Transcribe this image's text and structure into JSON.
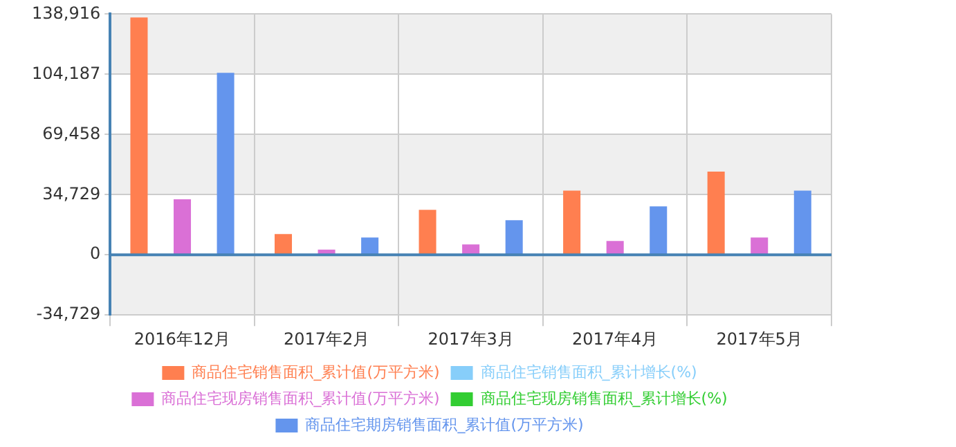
{
  "chart_data": {
    "type": "bar",
    "categories": [
      "2016年12月",
      "2017年2月",
      "2017年3月",
      "2017年4月",
      "2017年5月"
    ],
    "series": [
      {
        "name": "商品住宅销售面积_累计值(万平方米)",
        "color": "#ff7f50",
        "values": [
          137000,
          12000,
          26000,
          37000,
          48000
        ]
      },
      {
        "name": "商品住宅销售面积_累计增长(%)",
        "color": "#87cefa",
        "values": [
          null,
          null,
          null,
          null,
          null
        ]
      },
      {
        "name": "商品住宅现房销售面积_累计值(万平方米)",
        "color": "#da70d6",
        "values": [
          32000,
          3000,
          6000,
          8000,
          10000
        ]
      },
      {
        "name": "商品住宅现房销售面积_累计增长(%)",
        "color": "#32cd32",
        "values": [
          null,
          null,
          null,
          null,
          null
        ]
      },
      {
        "name": "商品住宅期房销售面积_累计值(万平方米)",
        "color": "#6495ed",
        "values": [
          105000,
          10000,
          20000,
          28000,
          37000
        ]
      }
    ],
    "ylim": [
      -34729,
      138916
    ],
    "yticks": [
      {
        "value": -34729,
        "label": "-34,729"
      },
      {
        "value": 0,
        "label": "0"
      },
      {
        "value": 34729,
        "label": "34,729"
      },
      {
        "value": 69458,
        "label": "69,458"
      },
      {
        "value": 104187,
        "label": "104,187"
      },
      {
        "value": 138916,
        "label": "138,916"
      }
    ],
    "ref_lines": [
      {
        "axis": "y",
        "value": 0,
        "color": "#4682b4"
      }
    ],
    "grid": true,
    "legend": "bottom"
  }
}
